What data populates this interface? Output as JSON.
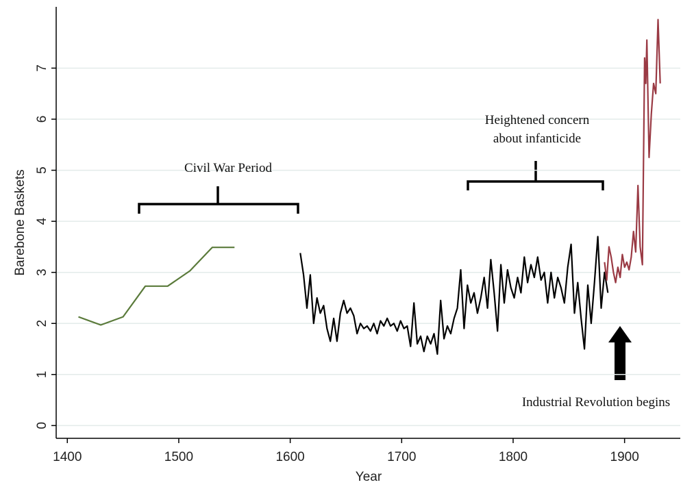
{
  "chart_data": {
    "type": "line",
    "xlabel": "Year",
    "ylabel": "Barebone Baskets",
    "xlim": [
      1390,
      1950
    ],
    "xticks": [
      1400,
      1500,
      1600,
      1700,
      1800,
      1900
    ],
    "ylim": [
      -0.25,
      8.2
    ],
    "yticks": [
      0,
      1,
      2,
      3,
      4,
      5,
      6,
      7
    ],
    "grid": true,
    "annotations": [
      "Civil War Period",
      "Heightened concern",
      "about infanticide",
      "Industrial Revolution begins"
    ],
    "series": [
      {
        "color": "#5a7a3a",
        "x": [
          1410,
          1430,
          1450,
          1470,
          1490,
          1510,
          1530,
          1550
        ],
        "values": [
          2.13,
          1.97,
          2.13,
          2.73,
          2.73,
          3.03,
          3.49,
          3.49
        ]
      },
      {
        "color": "#000000",
        "x": [
          1609,
          1612,
          1615,
          1618,
          1621,
          1624,
          1627,
          1630,
          1633,
          1636,
          1639,
          1642,
          1645,
          1648,
          1651,
          1654,
          1657,
          1660,
          1663,
          1666,
          1669,
          1672,
          1675,
          1678,
          1681,
          1684,
          1687,
          1690,
          1693,
          1696,
          1699,
          1702,
          1705,
          1708,
          1711,
          1714,
          1717,
          1720,
          1723,
          1726,
          1729,
          1732,
          1735,
          1738,
          1741,
          1744,
          1747,
          1750,
          1753,
          1756,
          1759,
          1762,
          1765,
          1768,
          1771,
          1774,
          1777,
          1780,
          1783,
          1786,
          1789,
          1792,
          1795,
          1798,
          1801,
          1804,
          1807,
          1810,
          1813,
          1816,
          1819,
          1822,
          1825,
          1828,
          1831,
          1834,
          1837,
          1840,
          1843,
          1846,
          1849,
          1852,
          1855,
          1858,
          1861,
          1864,
          1867,
          1870,
          1873,
          1876,
          1879,
          1882,
          1885
        ],
        "values": [
          3.38,
          2.95,
          2.3,
          2.95,
          2.0,
          2.5,
          2.2,
          2.35,
          1.9,
          1.65,
          2.1,
          1.65,
          2.2,
          2.45,
          2.2,
          2.3,
          2.15,
          1.8,
          2.0,
          1.9,
          1.95,
          1.85,
          2.0,
          1.8,
          2.05,
          1.95,
          2.1,
          1.95,
          2.0,
          1.85,
          2.05,
          1.9,
          1.95,
          1.55,
          2.4,
          1.6,
          1.75,
          1.45,
          1.75,
          1.6,
          1.8,
          1.4,
          2.45,
          1.7,
          1.95,
          1.8,
          2.1,
          2.3,
          3.05,
          1.9,
          2.75,
          2.4,
          2.6,
          2.2,
          2.5,
          2.9,
          2.3,
          3.25,
          2.6,
          1.85,
          3.15,
          2.4,
          3.05,
          2.7,
          2.5,
          2.9,
          2.6,
          3.3,
          2.8,
          3.15,
          2.9,
          3.3,
          2.85,
          3.0,
          2.4,
          3.0,
          2.5,
          2.9,
          2.7,
          2.4,
          3.1,
          3.55,
          2.2,
          2.8,
          2.1,
          1.5,
          2.75,
          2.0,
          2.8,
          3.7,
          2.3,
          3.0,
          2.6
        ]
      },
      {
        "color": "#9a3a44",
        "x": [
          1882,
          1884,
          1886,
          1888,
          1890,
          1892,
          1894,
          1896,
          1898,
          1900,
          1902,
          1904,
          1906,
          1908,
          1910,
          1912,
          1914,
          1916,
          1918,
          1919,
          1920,
          1922,
          1924,
          1926,
          1928,
          1930,
          1932
        ],
        "values": [
          3.2,
          2.85,
          3.5,
          3.3,
          3.0,
          2.8,
          3.1,
          2.9,
          3.35,
          3.1,
          3.2,
          3.05,
          3.3,
          3.8,
          3.4,
          4.7,
          3.5,
          3.15,
          7.2,
          6.7,
          7.55,
          5.25,
          6.1,
          6.7,
          6.5,
          7.95,
          6.7
        ]
      }
    ]
  }
}
